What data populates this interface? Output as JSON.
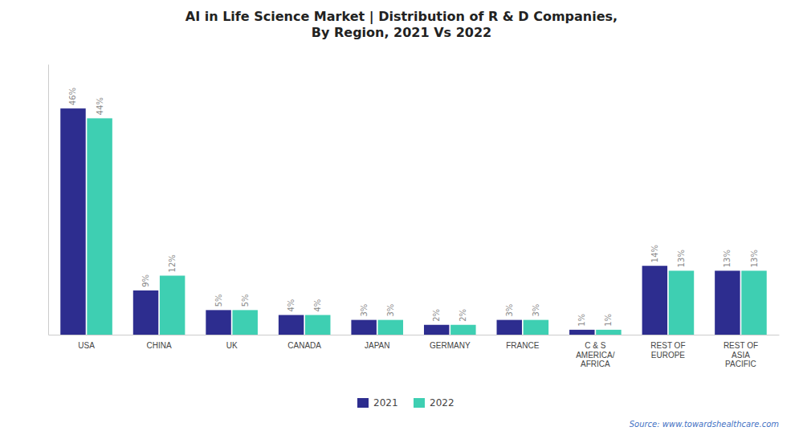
{
  "chart_data": {
    "type": "bar",
    "title": "AI in Life Science Market | Distribution of R & D Companies,\nBy Region, 2021 Vs 2022",
    "categories": [
      "USA",
      "CHINA",
      "UK",
      "CANADA",
      "JAPAN",
      "GERMANY",
      "FRANCE",
      "C & S\nAMERICA/\nAFRICA",
      "REST OF\nEUROPE",
      "REST OF\nASIA\nPACIFIC"
    ],
    "series": [
      {
        "name": "2021",
        "color": "#2d2d8f",
        "values": [
          46,
          9,
          5,
          4,
          3,
          2,
          3,
          1,
          14,
          13
        ],
        "value_labels": [
          "46%",
          "9%",
          "5%",
          "4%",
          "3%",
          "2%",
          "3%",
          "1%",
          "14%",
          "13%"
        ]
      },
      {
        "name": "2022",
        "color": "#3ecfb2",
        "values": [
          44,
          12,
          5,
          4,
          3,
          2,
          3,
          1,
          13,
          13
        ],
        "value_labels": [
          "44%",
          "12%",
          "5%",
          "4%",
          "3%",
          "2%",
          "3%",
          "1%",
          "13%",
          "13%"
        ]
      }
    ],
    "ylim": [
      0,
      55
    ],
    "tick_labels": "x",
    "data_labels": true,
    "grid": false,
    "legend": "bottom",
    "annotations": [
      "Source: www.towardshealthcare.com"
    ]
  }
}
